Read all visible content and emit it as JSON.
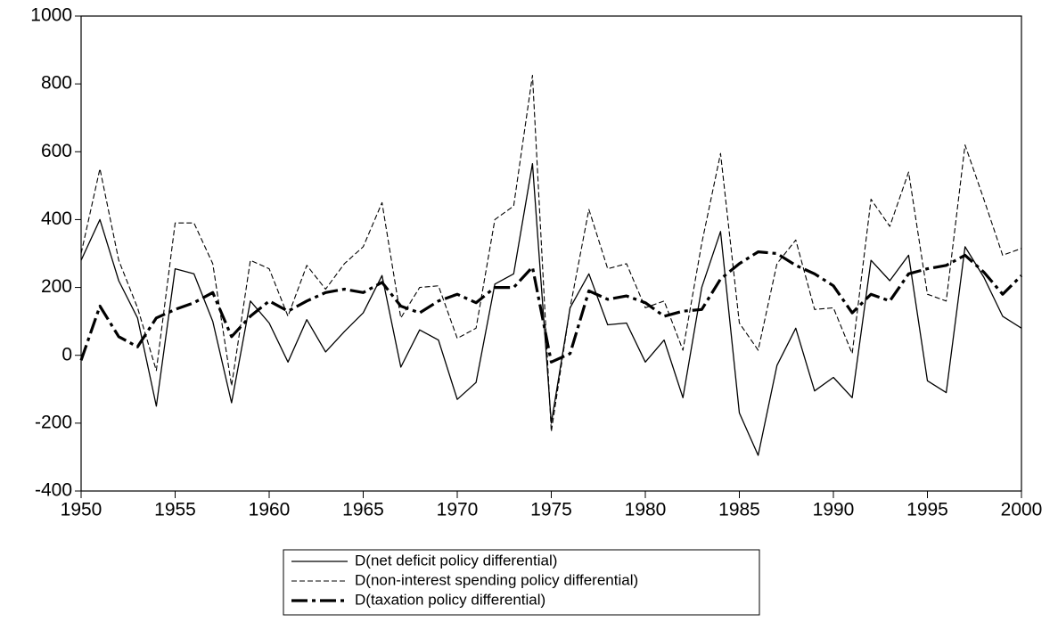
{
  "chart_data": {
    "type": "line",
    "x": [
      1950,
      1951,
      1952,
      1953,
      1954,
      1955,
      1956,
      1957,
      1958,
      1959,
      1960,
      1961,
      1962,
      1963,
      1964,
      1965,
      1966,
      1967,
      1968,
      1969,
      1970,
      1971,
      1972,
      1973,
      1974,
      1975,
      1976,
      1977,
      1978,
      1979,
      1980,
      1981,
      1982,
      1983,
      1984,
      1985,
      1986,
      1987,
      1988,
      1989,
      1990,
      1991,
      1992,
      1993,
      1994,
      1995,
      1996,
      1997,
      1998,
      1999,
      2000
    ],
    "series": [
      {
        "name": "D(net deficit policy differential)",
        "color": "#000000",
        "line_style": "solid",
        "values": [
          280,
          400,
          220,
          110,
          -150,
          255,
          240,
          100,
          -140,
          160,
          95,
          -20,
          105,
          10,
          70,
          125,
          235,
          -35,
          75,
          45,
          -130,
          -80,
          210,
          240,
          565,
          -200,
          140,
          240,
          90,
          95,
          -20,
          45,
          -125,
          200,
          365,
          -170,
          -295,
          -30,
          80,
          -105,
          -65,
          -125,
          280,
          220,
          295,
          -75,
          -110,
          320,
          230,
          115,
          80
        ]
      },
      {
        "name": "D(non-interest spending policy differential)",
        "color": "#000000",
        "line_style": "dashed",
        "values": [
          300,
          550,
          280,
          140,
          -45,
          390,
          390,
          270,
          -90,
          280,
          255,
          115,
          265,
          195,
          270,
          320,
          450,
          110,
          200,
          205,
          50,
          80,
          400,
          440,
          825,
          -225,
          140,
          430,
          255,
          270,
          140,
          160,
          15,
          330,
          595,
          95,
          15,
          270,
          340,
          135,
          140,
          5,
          460,
          380,
          540,
          180,
          160,
          620,
          460,
          295,
          315
        ]
      },
      {
        "name": "D(taxation policy differential)",
        "color": "#000000",
        "line_style": "long-dash",
        "values": [
          -15,
          145,
          55,
          25,
          110,
          135,
          155,
          185,
          55,
          115,
          160,
          130,
          160,
          185,
          195,
          185,
          215,
          145,
          125,
          160,
          180,
          155,
          200,
          200,
          260,
          -20,
          5,
          190,
          165,
          175,
          155,
          115,
          130,
          135,
          225,
          270,
          305,
          300,
          265,
          240,
          205,
          125,
          180,
          160,
          240,
          255,
          265,
          295,
          245,
          180,
          235
        ]
      }
    ],
    "xlim": [
      1950,
      2000
    ],
    "xticks": [
      1950,
      1955,
      1960,
      1965,
      1970,
      1975,
      1980,
      1985,
      1990,
      1995,
      2000
    ],
    "ylim": [
      -400,
      1000
    ],
    "yticks": [
      -400,
      -200,
      0,
      200,
      400,
      600,
      800,
      1000
    ],
    "grid": false,
    "legend": "bottom"
  }
}
